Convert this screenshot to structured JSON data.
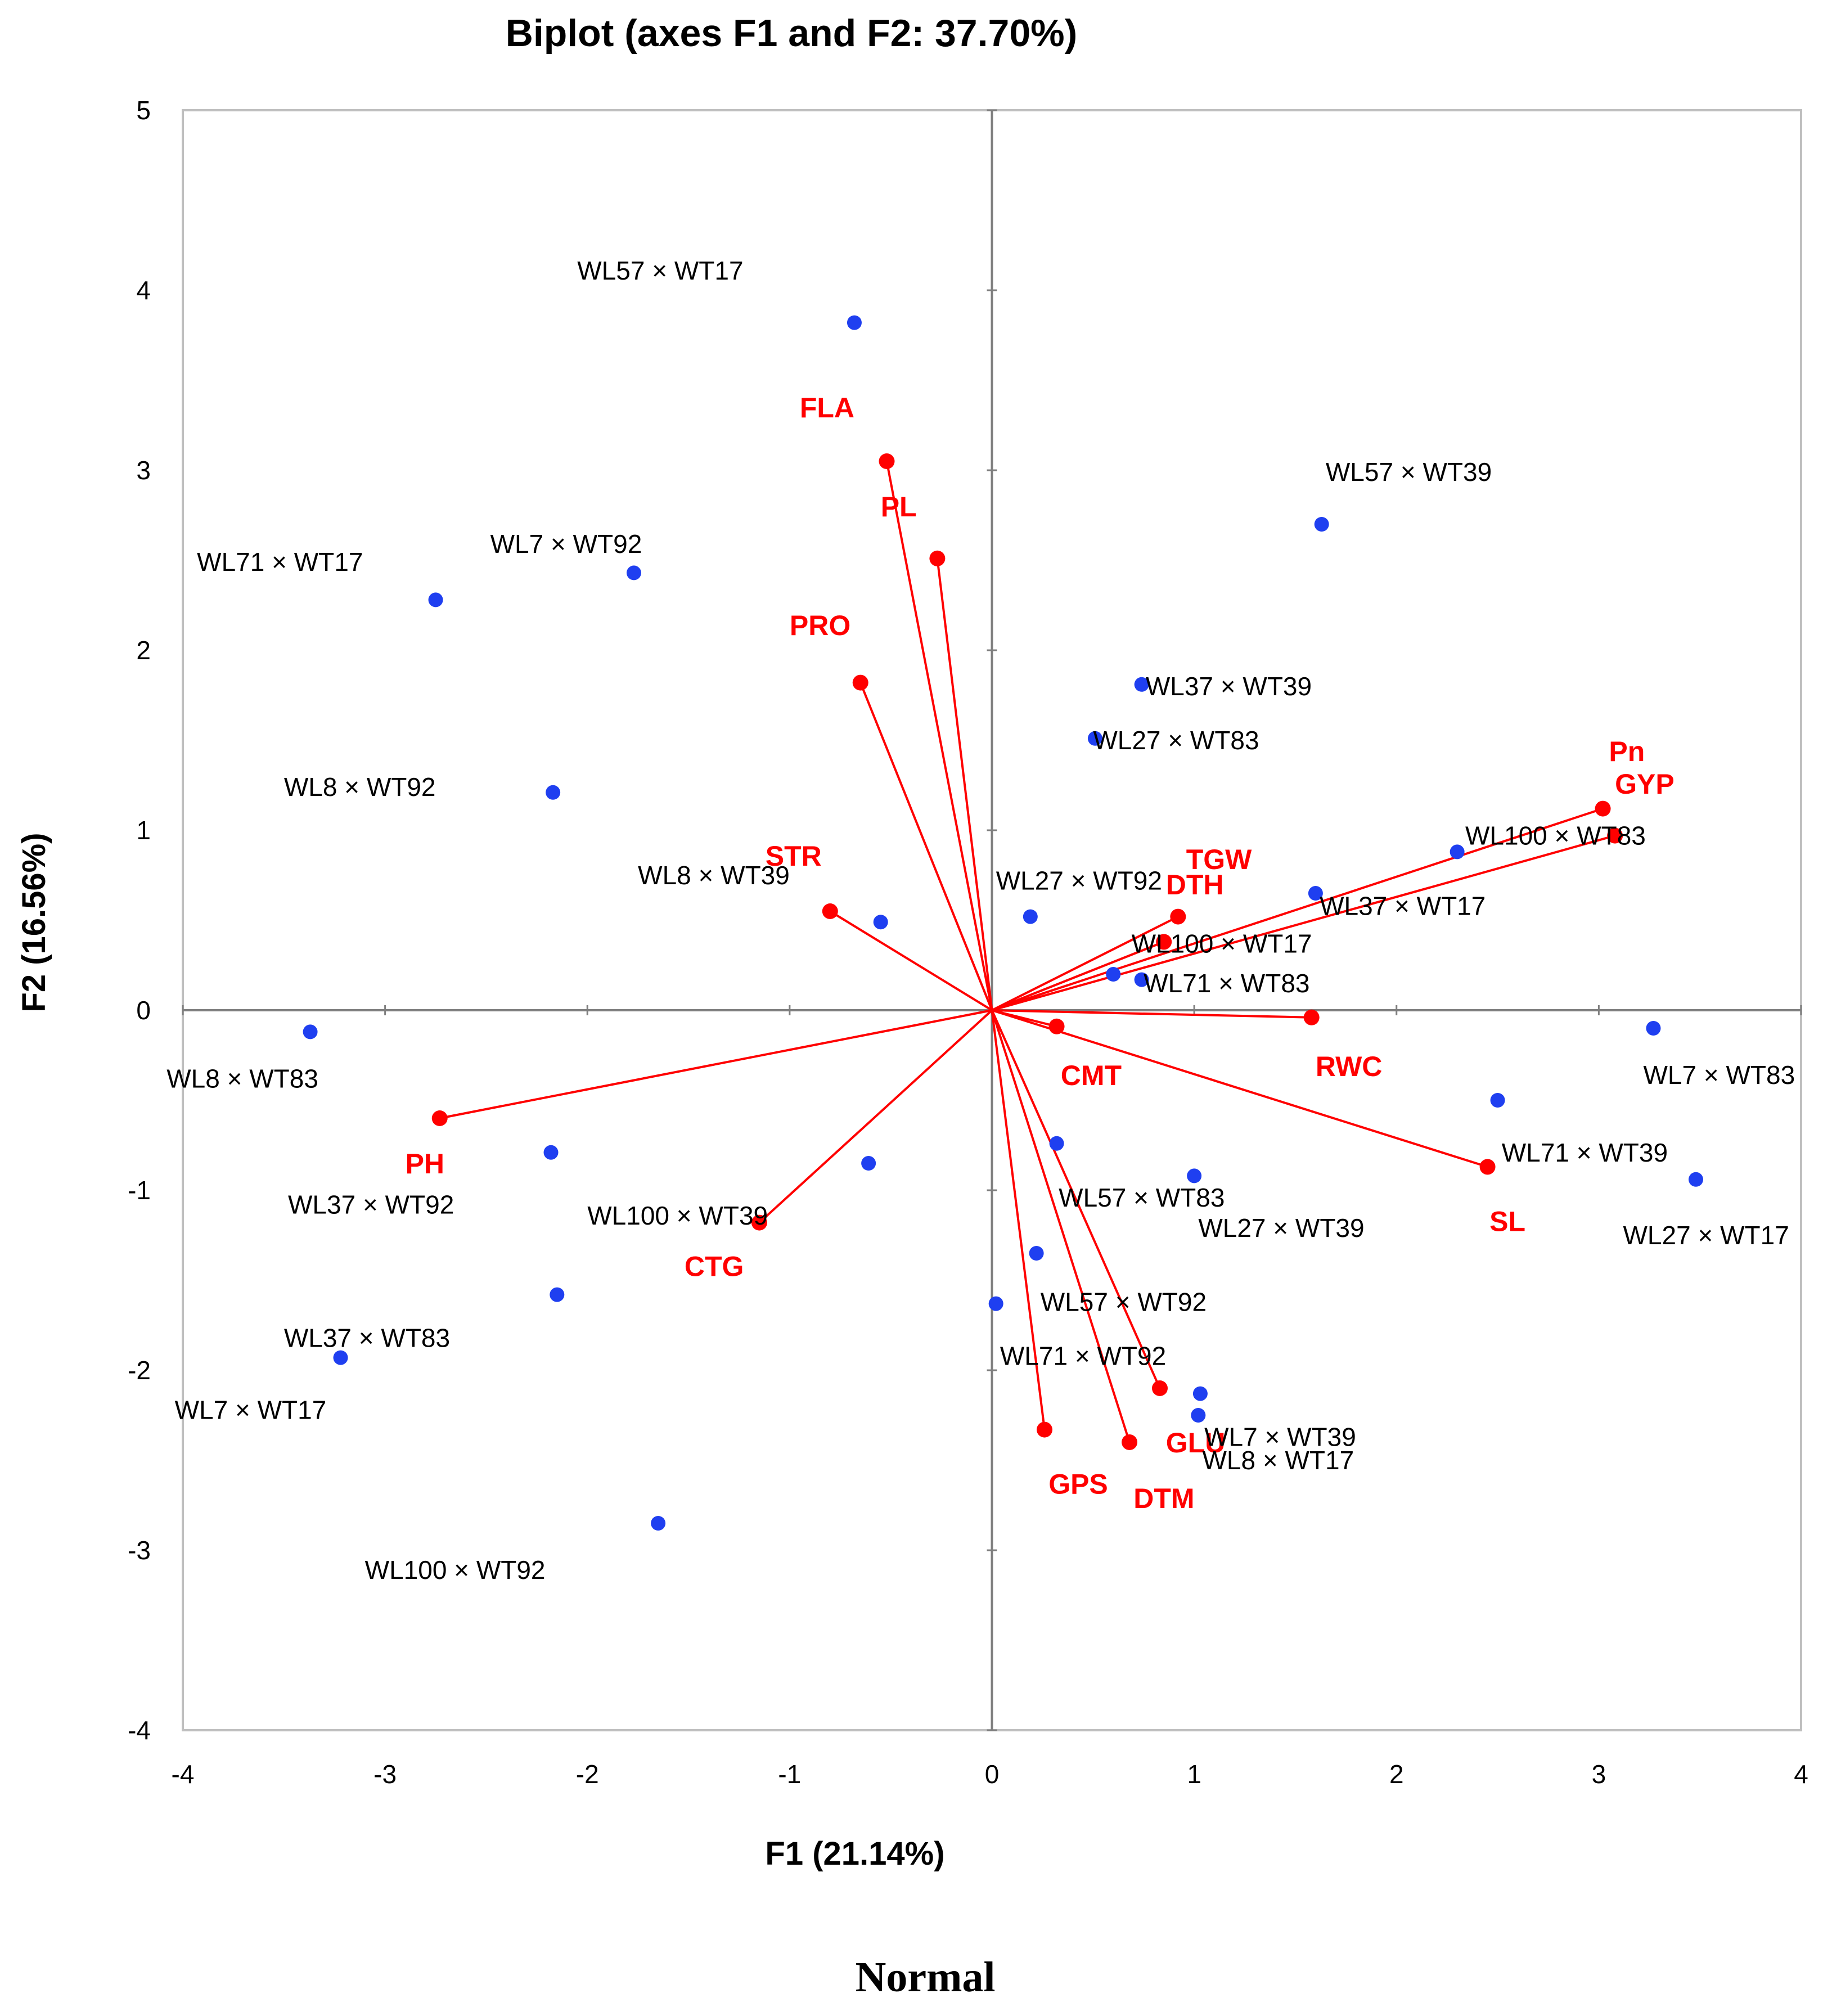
{
  "colors": {
    "variable": "#ff0000",
    "observation": "#1f3ff0",
    "axis": "#7f7f7f",
    "frame": "#bfbfbf"
  },
  "caption": "Normal",
  "chart_data": {
    "type": "scatter",
    "title": "Biplot (axes F1 and F2: 37.70%)",
    "xlabel": "F1 (21.14%)",
    "ylabel": "F2 (16.56%)",
    "xlim": [
      -4,
      4
    ],
    "ylim": [
      -4,
      5
    ],
    "xticks": [
      "-4",
      "-3",
      "-2",
      "-1",
      "0",
      "1",
      "2",
      "3",
      "4"
    ],
    "yticks": [
      "-4",
      "-3",
      "-2",
      "-1",
      "0",
      "1",
      "2",
      "3",
      "4",
      "5"
    ],
    "grid": false,
    "variables": [
      {
        "name": "FLA",
        "x": -0.52,
        "y": 3.05,
        "lx": -0.95,
        "ly": 3.35
      },
      {
        "name": "PL",
        "x": -0.27,
        "y": 2.51,
        "lx": -0.55,
        "ly": 2.8
      },
      {
        "name": "PRO",
        "x": -0.65,
        "y": 1.82,
        "lx": -1.0,
        "ly": 2.14
      },
      {
        "name": "STR",
        "x": -0.8,
        "y": 0.55,
        "lx": -1.12,
        "ly": 0.86
      },
      {
        "name": "TGW",
        "x": 0.92,
        "y": 0.52,
        "lx": 0.96,
        "ly": 0.84
      },
      {
        "name": "DTH",
        "x": 0.85,
        "y": 0.38,
        "lx": 0.86,
        "ly": 0.7
      },
      {
        "name": "Pn",
        "x": 3.02,
        "y": 1.12,
        "lx": 3.05,
        "ly": 1.44
      },
      {
        "name": "GYP",
        "x": 3.08,
        "y": 0.97,
        "lx": 3.08,
        "ly": 1.26
      },
      {
        "name": "RWC",
        "x": 1.58,
        "y": -0.04,
        "lx": 1.6,
        "ly": -0.31
      },
      {
        "name": "CMT",
        "x": 0.32,
        "y": -0.09,
        "lx": 0.34,
        "ly": -0.36
      },
      {
        "name": "SL",
        "x": 2.45,
        "y": -0.87,
        "lx": 2.46,
        "ly": -1.17
      },
      {
        "name": "PH",
        "x": -2.73,
        "y": -0.6,
        "lx": -2.9,
        "ly": -0.85
      },
      {
        "name": "CTG",
        "x": -1.15,
        "y": -1.18,
        "lx": -1.52,
        "ly": -1.42
      },
      {
        "name": "GLU",
        "x": 0.83,
        "y": -2.1,
        "lx": 0.86,
        "ly": -2.4
      },
      {
        "name": "DTM",
        "x": 0.68,
        "y": -2.4,
        "lx": 0.7,
        "ly": -2.71
      },
      {
        "name": "GPS",
        "x": 0.26,
        "y": -2.33,
        "lx": 0.28,
        "ly": -2.63
      }
    ],
    "observations": [
      {
        "name": "WL57 × WT17",
        "x": -0.68,
        "y": 3.82,
        "lx": -2.05,
        "ly": 4.11
      },
      {
        "name": "WL57 × WT39",
        "x": 1.63,
        "y": 2.7,
        "lx": 1.65,
        "ly": 2.99
      },
      {
        "name": "WL71 × WT17",
        "x": -2.75,
        "y": 2.28,
        "lx": -3.93,
        "ly": 2.49
      },
      {
        "name": "WL7 × WT92",
        "x": -1.77,
        "y": 2.43,
        "lx": -2.48,
        "ly": 2.59
      },
      {
        "name": "WL37 × WT39",
        "x": 0.74,
        "y": 1.81,
        "lx": 0.76,
        "ly": 1.8
      },
      {
        "name": "WL27 × WT83",
        "x": 0.51,
        "y": 1.51,
        "lx": 0.5,
        "ly": 1.5
      },
      {
        "name": "WL8 × WT92",
        "x": -2.17,
        "y": 1.21,
        "lx": -3.5,
        "ly": 1.24
      },
      {
        "name": "WL100 × WT83",
        "x": 2.3,
        "y": 0.88,
        "lx": 2.34,
        "ly": 0.97
      },
      {
        "name": "WL8 × WT39",
        "x": -0.55,
        "y": 0.49,
        "lx": -1.75,
        "ly": 0.75
      },
      {
        "name": "WL27 × WT92",
        "x": 0.19,
        "y": 0.52,
        "lx": 0.02,
        "ly": 0.72
      },
      {
        "name": "WL37 × WT17",
        "x": 1.6,
        "y": 0.65,
        "lx": 1.62,
        "ly": 0.58
      },
      {
        "name": "WL100 × WT17",
        "x": 0.6,
        "y": 0.2,
        "lx": 0.69,
        "ly": 0.37
      },
      {
        "name": "WL71 × WT83",
        "x": 0.74,
        "y": 0.17,
        "lx": 0.75,
        "ly": 0.15
      },
      {
        "name": "WL8 × WT83",
        "x": -3.37,
        "y": -0.12,
        "lx": -4.08,
        "ly": -0.38
      },
      {
        "name": "WL7 × WT83",
        "x": 3.27,
        "y": -0.1,
        "lx": 3.22,
        "ly": -0.36
      },
      {
        "name": "WL71 × WT39",
        "x": 2.5,
        "y": -0.5,
        "lx": 2.52,
        "ly": -0.79
      },
      {
        "name": "WL27 × WT17",
        "x": 3.48,
        "y": -0.94,
        "lx": 3.12,
        "ly": -1.25
      },
      {
        "name": "WL37 × WT92",
        "x": -2.18,
        "y": -0.79,
        "lx": -3.48,
        "ly": -1.08
      },
      {
        "name": "WL100 × WT39",
        "x": -0.61,
        "y": -0.85,
        "lx": -2.0,
        "ly": -1.14
      },
      {
        "name": "WL57 × WT83",
        "x": 0.32,
        "y": -0.74,
        "lx": 0.33,
        "ly": -1.04
      },
      {
        "name": "WL27 × WT39",
        "x": 1.0,
        "y": -0.92,
        "lx": 1.02,
        "ly": -1.21
      },
      {
        "name": "WL57 × WT92",
        "x": 0.22,
        "y": -1.35,
        "lx": 0.24,
        "ly": -1.62
      },
      {
        "name": "WL71 × WT92",
        "x": 0.02,
        "y": -1.63,
        "lx": 0.04,
        "ly": -1.92
      },
      {
        "name": "WL37 × WT83",
        "x": -2.15,
        "y": -1.58,
        "lx": -3.5,
        "ly": -1.82
      },
      {
        "name": "WL7 × WT17",
        "x": -3.22,
        "y": -1.93,
        "lx": -4.04,
        "ly": -2.22
      },
      {
        "name": "WL7 × WT39",
        "x": 1.03,
        "y": -2.13,
        "lx": 1.05,
        "ly": -2.37
      },
      {
        "name": "WL8 × WT17",
        "x": 1.02,
        "y": -2.25,
        "lx": 1.04,
        "ly": -2.5
      },
      {
        "name": "WL100 × WT92",
        "x": -1.65,
        "y": -2.85,
        "lx": -3.1,
        "ly": -3.11
      }
    ]
  }
}
